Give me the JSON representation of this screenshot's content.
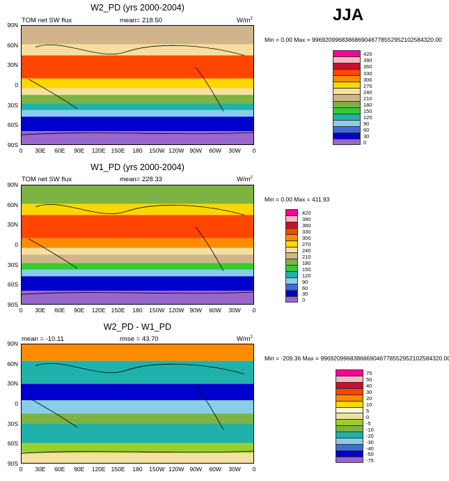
{
  "season": "JJA",
  "y_ticks": [
    "90N",
    "60N",
    "30N",
    "0",
    "30S",
    "60S",
    "90S"
  ],
  "x_ticks": [
    "0",
    "30E",
    "60E",
    "90E",
    "120E",
    "150E",
    "180",
    "150W",
    "120W",
    "90W",
    "60W",
    "30W",
    "0"
  ],
  "chart_data": [
    {
      "type": "heatmap",
      "title": "W2_PD (yrs 2000-2004)",
      "left_label": "TOM net SW flux",
      "mean_text": "mean= 218.50",
      "units": "W/m",
      "units_sup": "2",
      "minmax": "Min =   0.00 Max = 9969209968386869046778552952102584320.00",
      "colorbar_labels": [
        "420",
        "390",
        "360",
        "330",
        "300",
        "270",
        "240",
        "210",
        "180",
        "150",
        "120",
        "90",
        "60",
        "30",
        "0"
      ],
      "colors": [
        "#ff0099",
        "#ffb6c1",
        "#c8102e",
        "#ff4500",
        "#ff8c00",
        "#ffd700",
        "#f4e1a0",
        "#d2b48c",
        "#7cb342",
        "#33cc33",
        "#20b2aa",
        "#87ceeb",
        "#4169e1",
        "#0000cd",
        "#9966cc"
      ],
      "bands": [
        {
          "lat": [
            90,
            62
          ],
          "value": 225
        },
        {
          "lat": [
            62,
            45
          ],
          "value": 255
        },
        {
          "lat": [
            45,
            10
          ],
          "value": 345
        },
        {
          "lat": [
            10,
            -5
          ],
          "value": 280
        },
        {
          "lat": [
            -5,
            -15
          ],
          "value": 255
        },
        {
          "lat": [
            -15,
            -28
          ],
          "value": 200
        },
        {
          "lat": [
            -28,
            -38
          ],
          "value": 140
        },
        {
          "lat": [
            -38,
            -48
          ],
          "value": 95
        },
        {
          "lat": [
            -48,
            -70
          ],
          "value": 45
        },
        {
          "lat": [
            -70,
            -90
          ],
          "value": 10
        }
      ]
    },
    {
      "type": "heatmap",
      "title": "W1_PD (yrs 2000-2004)",
      "left_label": "TOM net SW flux",
      "mean_text": "mean= 228.33",
      "units": "W/m",
      "units_sup": "2",
      "minmax": "Min =   0.00 Max = 411.93",
      "colorbar_labels": [
        "420",
        "390",
        "360",
        "330",
        "300",
        "270",
        "240",
        "210",
        "180",
        "150",
        "120",
        "90",
        "60",
        "30",
        "0"
      ],
      "colors": [
        "#ff0099",
        "#ffb6c1",
        "#c8102e",
        "#ff4500",
        "#ff8c00",
        "#ffd700",
        "#f4e1a0",
        "#d2b48c",
        "#7cb342",
        "#33cc33",
        "#20b2aa",
        "#87ceeb",
        "#4169e1",
        "#0000cd",
        "#9966cc"
      ],
      "bands": [
        {
          "lat": [
            90,
            62
          ],
          "value": 195
        },
        {
          "lat": [
            62,
            45
          ],
          "value": 285
        },
        {
          "lat": [
            45,
            10
          ],
          "value": 355
        },
        {
          "lat": [
            10,
            -5
          ],
          "value": 300
        },
        {
          "lat": [
            -5,
            -15
          ],
          "value": 265
        },
        {
          "lat": [
            -15,
            -28
          ],
          "value": 210
        },
        {
          "lat": [
            -28,
            -38
          ],
          "value": 160
        },
        {
          "lat": [
            -38,
            -48
          ],
          "value": 105
        },
        {
          "lat": [
            -48,
            -70
          ],
          "value": 45
        },
        {
          "lat": [
            -70,
            -90
          ],
          "value": 10
        }
      ]
    },
    {
      "type": "heatmap",
      "title": "W2_PD - W1_PD",
      "left_label": "mean = -10.11",
      "mean_text": "rmse =  43.70",
      "units": "W/m",
      "units_sup": "2",
      "minmax": "Min = -209.36 Max = 9969209968386869046778552952102584320.00",
      "colorbar_labels": [
        "75",
        "50",
        "40",
        "30",
        "20",
        "10",
        "5",
        "0",
        "-5",
        "-10",
        "-20",
        "-30",
        "-40",
        "-50",
        "-75"
      ],
      "colors": [
        "#ff0099",
        "#ffb6c1",
        "#c8102e",
        "#ff4500",
        "#ff8c00",
        "#ffd700",
        "#fff8dc",
        "#f4e1a0",
        "#9acd32",
        "#7cb342",
        "#20b2aa",
        "#87ceeb",
        "#4169e1",
        "#0000cd",
        "#9966cc"
      ],
      "bands": [
        {
          "lat": [
            90,
            65
          ],
          "value": 25
        },
        {
          "lat": [
            65,
            30
          ],
          "value": -15
        },
        {
          "lat": [
            30,
            5
          ],
          "value": -45
        },
        {
          "lat": [
            5,
            -15
          ],
          "value": -25
        },
        {
          "lat": [
            -15,
            -30
          ],
          "value": -10
        },
        {
          "lat": [
            -30,
            -45
          ],
          "value": -20
        },
        {
          "lat": [
            -45,
            -60
          ],
          "value": -15
        },
        {
          "lat": [
            -60,
            -75
          ],
          "value": -5
        },
        {
          "lat": [
            -75,
            -90
          ],
          "value": 0
        }
      ]
    }
  ]
}
